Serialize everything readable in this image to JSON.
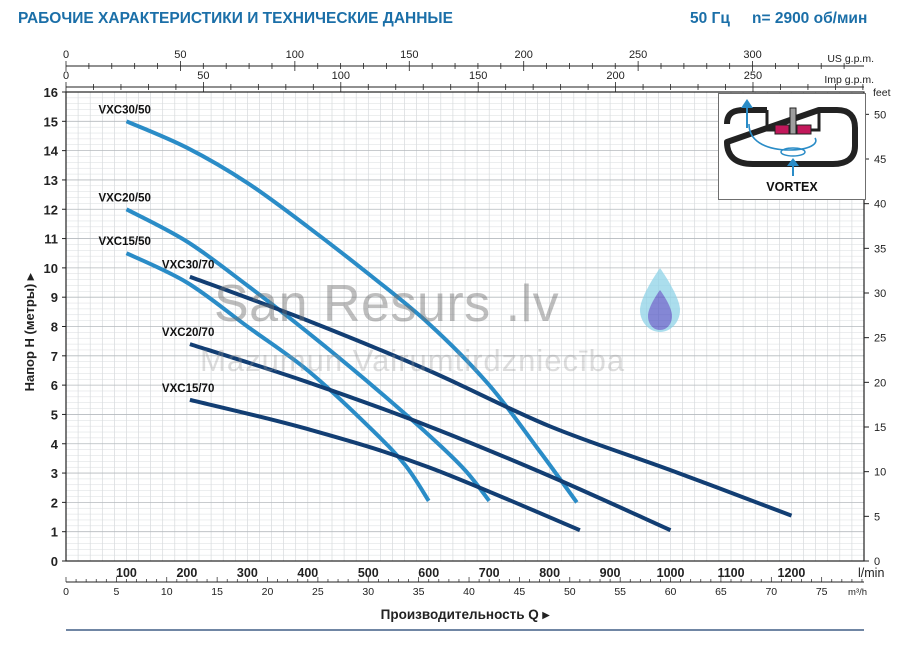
{
  "header": {
    "title": "РАБОЧИЕ ХАРАКТЕРИСТИКИ И ТЕХНИЧЕСКИЕ ДАННЫЕ",
    "frequency": "50 Гц",
    "speed": "n= 2900 об/мин"
  },
  "watermark": {
    "main": "San Resurs .lv",
    "sub": "Mazumun Vairumtirdzniecība"
  },
  "vortex": {
    "label": "VORTEX"
  },
  "chart_data": {
    "type": "line",
    "xlabel": "Производительность Q",
    "ylabel": "Напор H (метры)",
    "grid": true,
    "x_units": {
      "lmin": "l/min",
      "m3h": "m³/h",
      "usgpm": "US g.p.m.",
      "impgpm": "Imp g.p.m.",
      "feet": "feet"
    },
    "x_lmin": {
      "range": [
        0,
        1320
      ],
      "ticks": [
        100,
        200,
        300,
        400,
        500,
        600,
        700,
        800,
        900,
        1000,
        1100,
        1200
      ]
    },
    "x_m3h": {
      "range": [
        0,
        79.2
      ],
      "ticks": [
        0,
        5,
        10,
        15,
        20,
        25,
        30,
        35,
        40,
        45,
        50,
        55,
        60,
        65,
        70,
        75
      ]
    },
    "x_usgpm": {
      "range": [
        0,
        348.7
      ],
      "ticks": [
        0,
        50,
        100,
        150,
        200,
        250,
        300
      ]
    },
    "x_impgpm": {
      "range": [
        0,
        290.4
      ],
      "ticks": [
        0,
        50,
        100,
        150,
        200,
        250
      ]
    },
    "y_m": {
      "range": [
        0,
        16
      ],
      "ticks": [
        0,
        1,
        2,
        3,
        4,
        5,
        6,
        7,
        8,
        9,
        10,
        11,
        12,
        13,
        14,
        15,
        16
      ]
    },
    "y_feet": {
      "range": [
        0,
        52.5
      ],
      "ticks": [
        0,
        5,
        10,
        15,
        20,
        25,
        30,
        35,
        40,
        45,
        50
      ]
    },
    "series": [
      {
        "name": "VXC30/50",
        "color": "#2a8cc7",
        "x": [
          100,
          200,
          300,
          400,
          500,
          600,
          700,
          785,
          845
        ],
        "y": [
          15.0,
          14.1,
          12.9,
          11.4,
          9.8,
          8.1,
          6.0,
          3.7,
          2.0
        ]
      },
      {
        "name": "VXC20/50",
        "color": "#2a8cc7",
        "x": [
          100,
          200,
          300,
          400,
          500,
          600,
          660,
          700
        ],
        "y": [
          12.0,
          10.9,
          9.4,
          7.8,
          6.1,
          4.3,
          3.1,
          2.05
        ]
      },
      {
        "name": "VXC15/50",
        "color": "#2a8cc7",
        "x": [
          100,
          200,
          300,
          400,
          500,
          560,
          600
        ],
        "y": [
          10.5,
          9.5,
          8.0,
          6.5,
          4.6,
          3.3,
          2.05
        ]
      },
      {
        "name": "VXC30/70",
        "color": "#123e73",
        "x": [
          205,
          400,
          600,
          800,
          1000,
          1200
        ],
        "y": [
          9.7,
          8.2,
          6.5,
          4.6,
          3.1,
          1.55
        ]
      },
      {
        "name": "VXC20/70",
        "color": "#123e73",
        "x": [
          205,
          400,
          600,
          800,
          1000
        ],
        "y": [
          7.4,
          6.1,
          4.6,
          2.9,
          1.05
        ]
      },
      {
        "name": "VXC15/70",
        "color": "#123e73",
        "x": [
          205,
          400,
          600,
          850
        ],
        "y": [
          5.5,
          4.5,
          3.2,
          1.05
        ]
      }
    ]
  }
}
